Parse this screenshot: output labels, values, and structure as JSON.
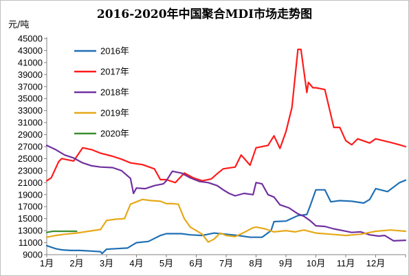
{
  "chart_data": {
    "type": "line",
    "title": "2016-2020年中国聚合MDI市场走势图",
    "ylabel": "元/吨",
    "xlabel": "",
    "ylim": [
      9000,
      45000
    ],
    "yticks": [
      9000,
      11000,
      13000,
      15000,
      17000,
      19000,
      21000,
      23000,
      25000,
      27000,
      29000,
      31000,
      33000,
      35000,
      37000,
      39000,
      41000,
      43000,
      45000
    ],
    "categories": [
      "1月",
      "2月",
      "3月",
      "4月",
      "5月",
      "6月",
      "7月",
      "8月",
      "9月",
      "10月",
      "11月",
      "12月"
    ],
    "xlim": [
      1,
      13
    ],
    "grid": false,
    "legend_position": "top-left",
    "series": [
      {
        "name": "2016年",
        "color": "#1f6fb4",
        "x": [
          1.0,
          1.3,
          1.5,
          1.8,
          2.1,
          2.5,
          2.8,
          2.85,
          3.0,
          3.3,
          3.7,
          4.0,
          4.4,
          4.8,
          5.0,
          5.5,
          5.8,
          6.2,
          6.6,
          7.0,
          7.4,
          7.8,
          8.2,
          8.5,
          8.6,
          9.0,
          9.4,
          9.7,
          9.8,
          10.0,
          10.3,
          10.5,
          10.8,
          11.2,
          11.6,
          11.8,
          12.0,
          12.4,
          12.8,
          13.0
        ],
        "y": [
          10500,
          10000,
          9800,
          9700,
          9700,
          9600,
          9500,
          9200,
          9900,
          10000,
          10100,
          11000,
          11200,
          12200,
          12500,
          12500,
          12300,
          12200,
          12600,
          12400,
          12200,
          11900,
          11900,
          13000,
          14500,
          14600,
          15500,
          15700,
          17000,
          19800,
          19800,
          17800,
          18000,
          17900,
          17600,
          18200,
          20000,
          19500,
          21000,
          21400
        ]
      },
      {
        "name": "2017年",
        "color": "#ff1a1a",
        "x": [
          1.0,
          1.15,
          1.4,
          1.5,
          1.9,
          2.2,
          2.5,
          2.8,
          3.2,
          3.5,
          3.8,
          4.2,
          4.6,
          4.8,
          5.0,
          5.3,
          5.6,
          5.9,
          6.2,
          6.5,
          6.7,
          6.9,
          7.3,
          7.5,
          7.8,
          8.0,
          8.4,
          8.6,
          8.8,
          9.0,
          9.2,
          9.4,
          9.5,
          9.7,
          9.75,
          9.9,
          10.0,
          10.3,
          10.6,
          10.8,
          11.0,
          11.2,
          11.4,
          11.8,
          12.0,
          12.5,
          12.8,
          13.0
        ],
        "y": [
          21300,
          21800,
          24500,
          25000,
          24600,
          26800,
          26500,
          25900,
          25400,
          24900,
          24300,
          24000,
          23300,
          21500,
          21500,
          21000,
          22600,
          21800,
          21300,
          21600,
          22500,
          23300,
          23600,
          25600,
          23900,
          26800,
          27200,
          28800,
          26700,
          29500,
          33500,
          43200,
          43200,
          36000,
          37700,
          36800,
          36800,
          36500,
          30200,
          30200,
          28000,
          27300,
          28300,
          27600,
          28300,
          27700,
          27300,
          27000
        ]
      },
      {
        "name": "2018年",
        "color": "#7030a0",
        "x": [
          1.0,
          1.3,
          1.6,
          1.9,
          2.2,
          2.5,
          2.8,
          3.2,
          3.5,
          3.8,
          3.9,
          4.0,
          4.3,
          4.6,
          4.9,
          5.0,
          5.2,
          5.5,
          5.8,
          6.1,
          6.4,
          6.7,
          6.9,
          7.1,
          7.3,
          7.6,
          7.9,
          8.0,
          8.2,
          8.4,
          8.6,
          8.8,
          9.1,
          9.4,
          9.6,
          9.8,
          10.0,
          10.3,
          10.6,
          10.9,
          11.2,
          11.5,
          11.8,
          12.1,
          12.3,
          12.6,
          13.0
        ],
        "y": [
          27200,
          26500,
          25600,
          25100,
          24300,
          23800,
          23600,
          23500,
          23000,
          21700,
          19200,
          20100,
          20000,
          20500,
          20800,
          21300,
          22900,
          22600,
          21800,
          21200,
          21000,
          20500,
          19800,
          19200,
          18800,
          19200,
          19000,
          21000,
          20800,
          19000,
          18600,
          17300,
          16800,
          15800,
          15400,
          14700,
          13800,
          13700,
          13300,
          13000,
          12700,
          12800,
          12300,
          12100,
          12200,
          11300,
          11400
        ]
      },
      {
        "name": "2019年",
        "color": "#e6a817",
        "x": [
          1.0,
          1.3,
          1.6,
          2.0,
          2.4,
          2.8,
          3.0,
          3.3,
          3.6,
          3.8,
          4.0,
          4.2,
          4.5,
          4.8,
          5.0,
          5.2,
          5.4,
          5.6,
          5.8,
          6.0,
          6.2,
          6.4,
          6.6,
          6.8,
          7.0,
          7.3,
          7.6,
          7.9,
          8.0,
          8.3,
          8.6,
          9.0,
          9.3,
          9.6,
          10.0,
          10.5,
          11.0,
          11.5,
          12.0,
          12.5,
          13.0
        ],
        "y": [
          11900,
          12200,
          12400,
          12600,
          12900,
          13200,
          14700,
          14900,
          15000,
          17400,
          17800,
          18200,
          18000,
          17900,
          17500,
          17500,
          17400,
          15000,
          13600,
          13000,
          12400,
          11100,
          11600,
          12600,
          12200,
          12000,
          12700,
          13500,
          13600,
          13300,
          12800,
          13000,
          12800,
          13100,
          12600,
          12400,
          12200,
          12400,
          12900,
          13100,
          12900
        ]
      },
      {
        "name": "2020年",
        "color": "#3a8f2e",
        "x": [
          1.0,
          1.2,
          1.5,
          1.8,
          2.0
        ],
        "y": [
          12700,
          12900,
          12900,
          12900,
          12900
        ]
      }
    ]
  }
}
